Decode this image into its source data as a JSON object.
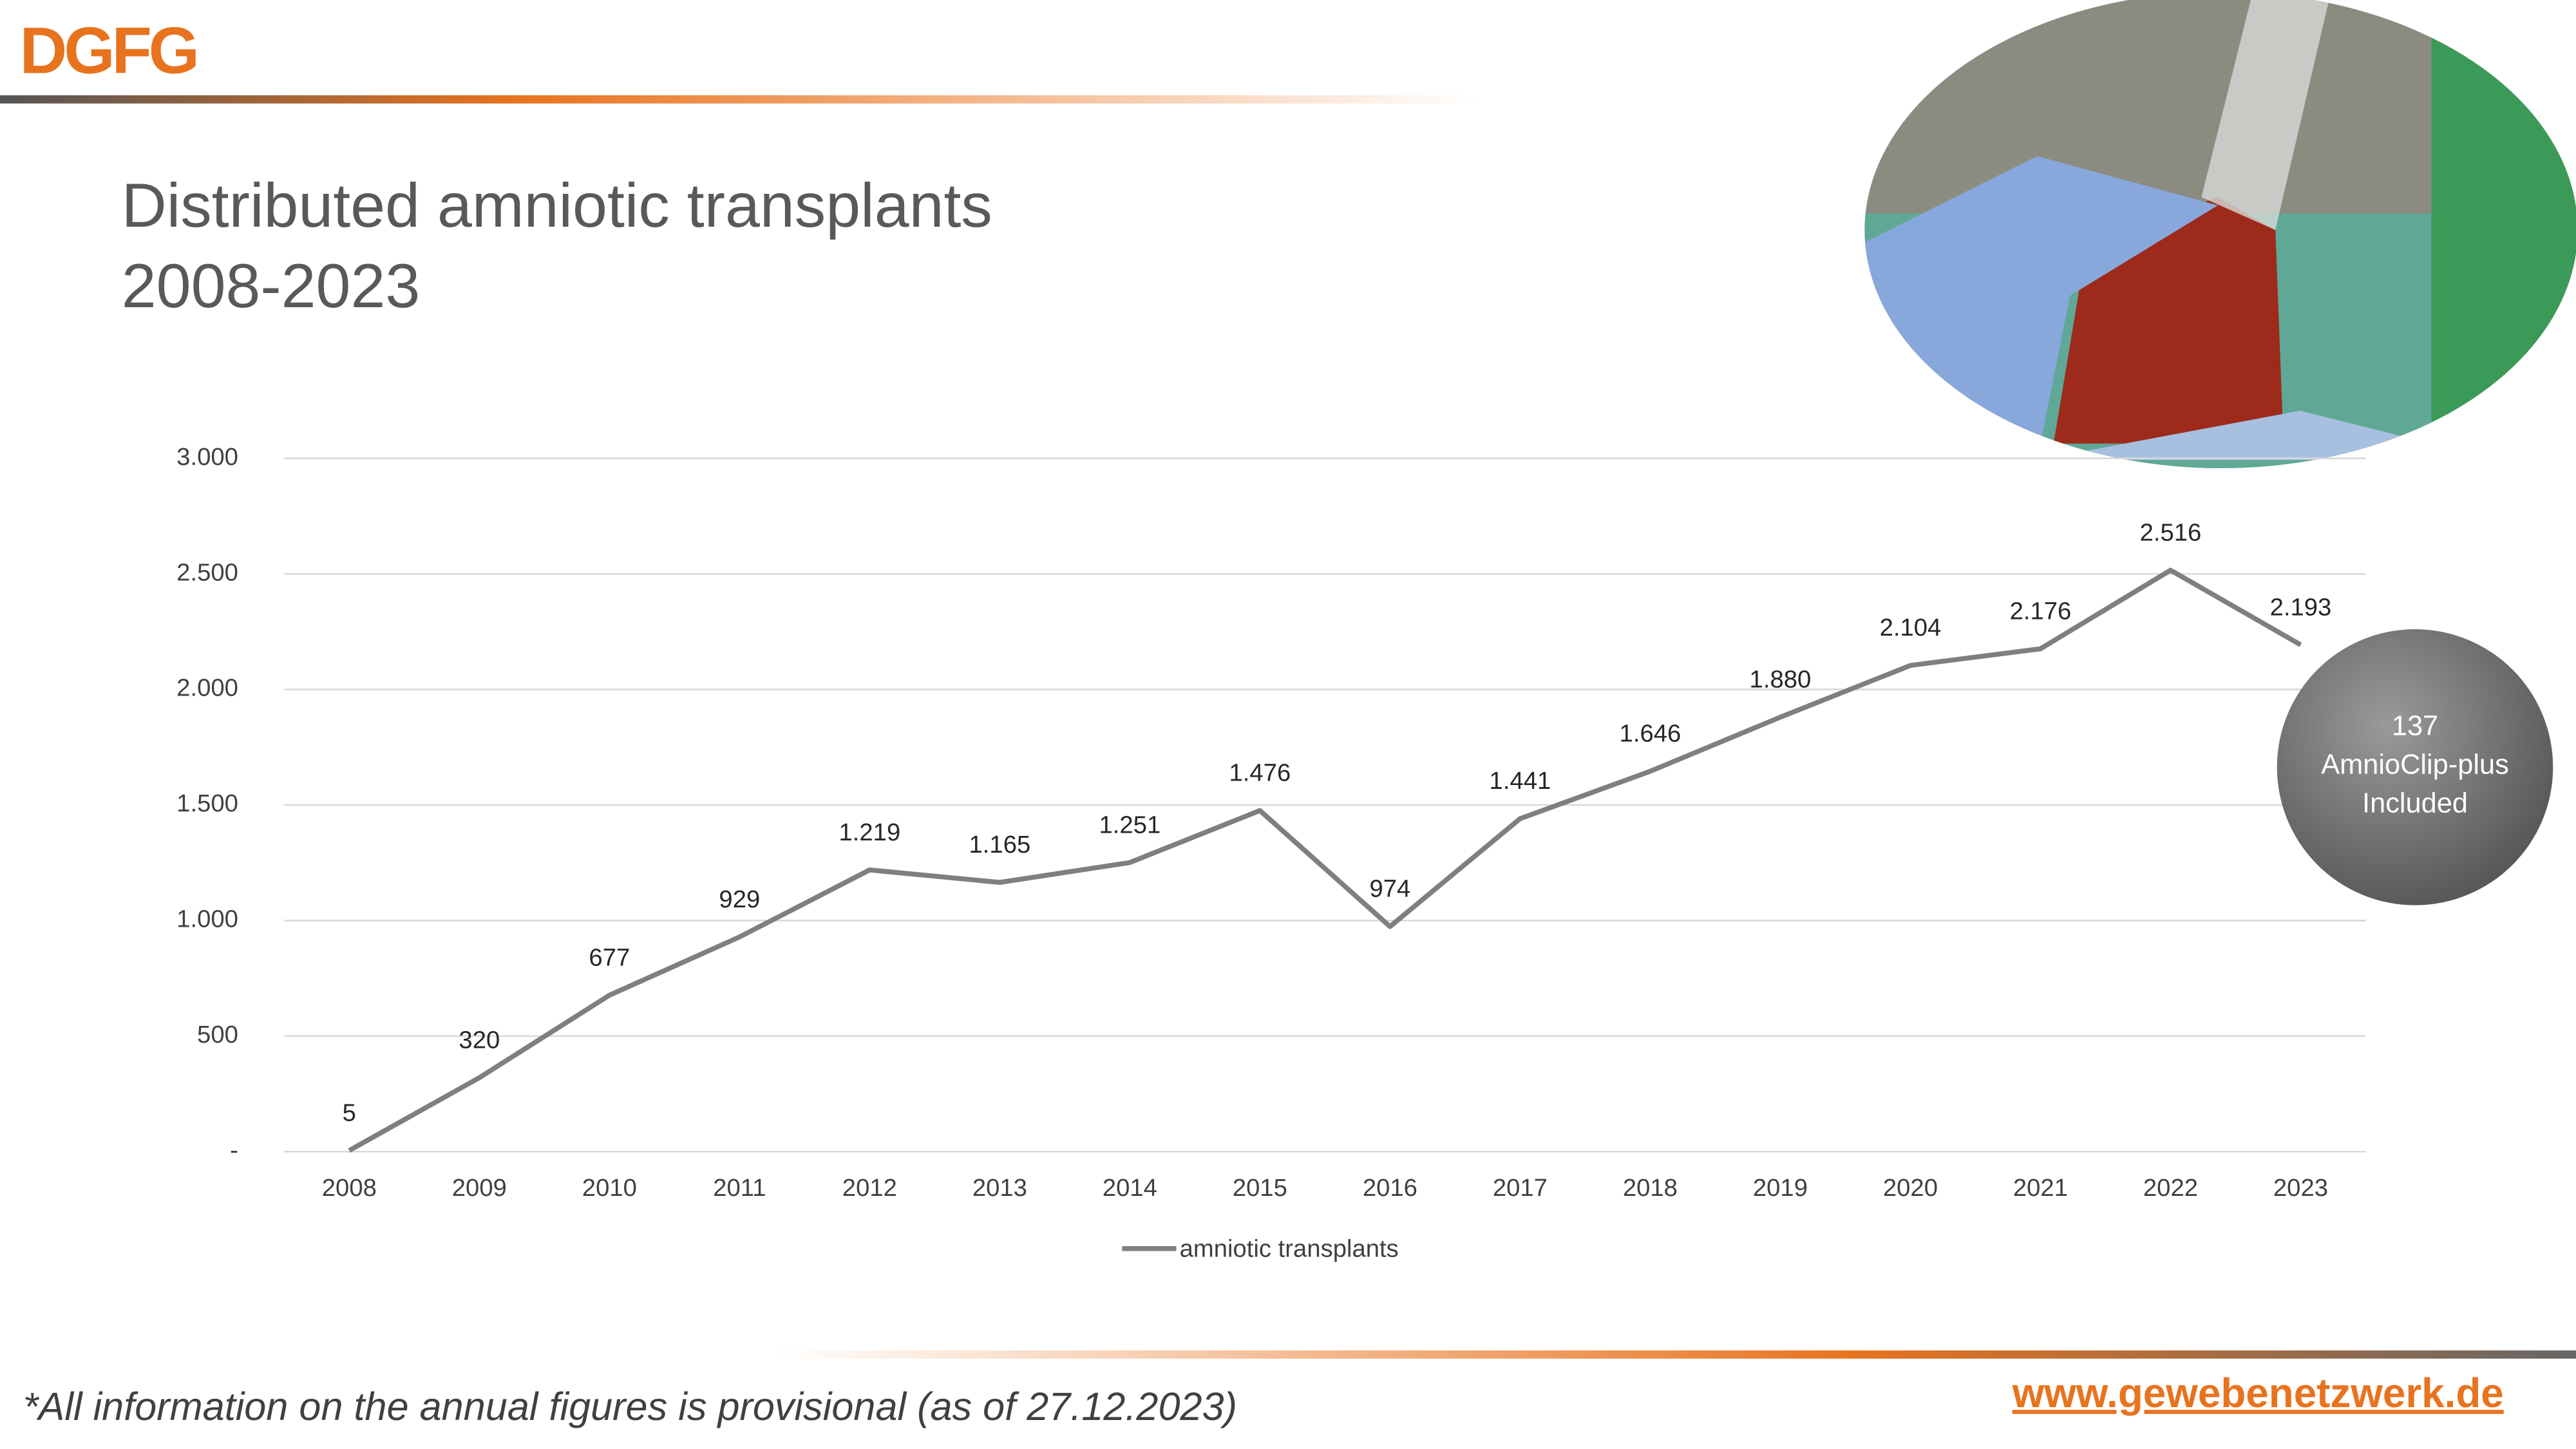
{
  "header": {
    "logo": "DGFG"
  },
  "chart_data": {
    "type": "line",
    "title": "Distributed amniotic transplants",
    "subtitle": "2008-2023",
    "categories": [
      "2008",
      "2009",
      "2010",
      "2011",
      "2012",
      "2013",
      "2014",
      "2015",
      "2016",
      "2017",
      "2018",
      "2019",
      "2020",
      "2021",
      "2022",
      "2023"
    ],
    "series": [
      {
        "name": "amniotic transplants",
        "color": "#7f7f7f",
        "values": [
          5,
          320,
          677,
          929,
          1219,
          1165,
          1251,
          1476,
          974,
          1441,
          1646,
          1880,
          2104,
          2176,
          2516,
          2193
        ],
        "value_labels": [
          "5",
          "320",
          "677",
          "929",
          "1.219",
          "1.165",
          "1.251",
          "1.476",
          "974",
          "1.441",
          "1.646",
          "1.880",
          "2.104",
          "2.176",
          "2.516",
          "2.193"
        ]
      }
    ],
    "ylim": [
      0,
      3000
    ],
    "yticks": [
      {
        "value": 0,
        "label": "-"
      },
      500,
      {
        "value": 1000,
        "label": "1.000"
      },
      {
        "value": 1500,
        "label": "1.500"
      },
      {
        "value": 2000,
        "label": "2.000"
      },
      {
        "value": 2500,
        "label": "2.500"
      },
      {
        "value": 3000,
        "label": "3.000"
      }
    ],
    "grid": true,
    "legend": "bottom",
    "annotation": [
      "137",
      "AmnioClip-plus",
      "Included"
    ]
  },
  "footer": {
    "note": "*All information on the annual figures is provisional (as of 27.12.2023)",
    "url": "www.gewebenetzwerk.de"
  }
}
